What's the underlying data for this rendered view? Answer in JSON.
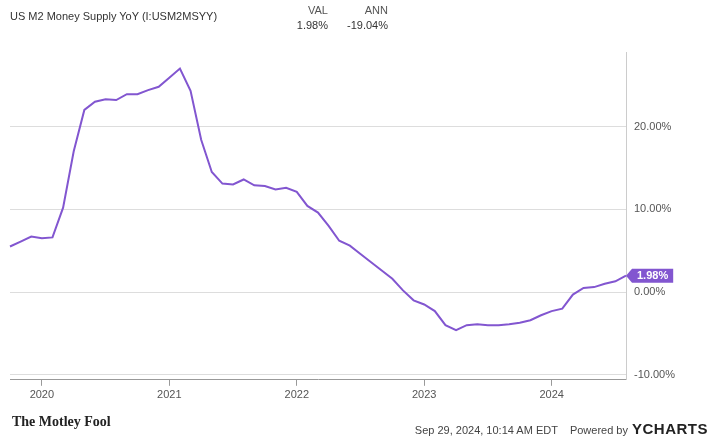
{
  "header": {
    "series_label": "US M2 Money Supply YoY (I:USM2MSYY)",
    "columns": [
      {
        "label": "VAL",
        "value": "1.98%"
      },
      {
        "label": "ANN",
        "value": "-19.04%"
      }
    ]
  },
  "chart_data": {
    "type": "line",
    "color": "#8256d0",
    "categories": [
      null,
      null,
      null,
      "2020",
      null,
      null,
      null,
      null,
      null,
      null,
      null,
      null,
      null,
      null,
      null,
      "2021",
      null,
      null,
      null,
      null,
      null,
      null,
      null,
      null,
      null,
      null,
      null,
      "2022",
      null,
      null,
      null,
      null,
      null,
      null,
      null,
      null,
      null,
      null,
      null,
      "2023",
      null,
      null,
      null,
      null,
      null,
      null,
      null,
      null,
      null,
      null,
      null,
      "2024",
      null,
      null,
      null,
      null,
      null,
      null,
      null
    ],
    "values": [
      5.5,
      6.1,
      6.7,
      6.5,
      6.6,
      10.2,
      17.0,
      22.0,
      23.0,
      23.3,
      23.2,
      23.9,
      23.9,
      24.4,
      24.8,
      25.9,
      27.0,
      24.3,
      18.4,
      14.5,
      13.1,
      13.0,
      13.6,
      12.9,
      12.8,
      12.4,
      12.6,
      12.1,
      10.4,
      9.6,
      8.0,
      6.2,
      5.6,
      4.6,
      3.6,
      2.6,
      1.6,
      0.2,
      -1.0,
      -1.5,
      -2.3,
      -4.0,
      -4.6,
      -4.0,
      -3.9,
      -4.0,
      -4.0,
      -3.9,
      -3.7,
      -3.4,
      -2.8,
      -2.3,
      -2.0,
      -0.3,
      0.5,
      0.6,
      1.0,
      1.3,
      1.98
    ],
    "ylim": [
      -10.6,
      29
    ],
    "yticks": [
      {
        "value": -10,
        "label": "-10.00%"
      },
      {
        "value": 0,
        "label": "0.00%"
      },
      {
        "value": 10,
        "label": "10.00%"
      },
      {
        "value": 20,
        "label": "20.00%"
      }
    ],
    "grid": true,
    "annotations": [
      {
        "text": "1.98%",
        "value": 1.98
      }
    ]
  },
  "footer": {
    "brand": "The Motley Fool",
    "timestamp": "Sep 29, 2024, 10:14 AM EDT",
    "powered_by": "Powered by",
    "provider": "YCHARTS"
  }
}
